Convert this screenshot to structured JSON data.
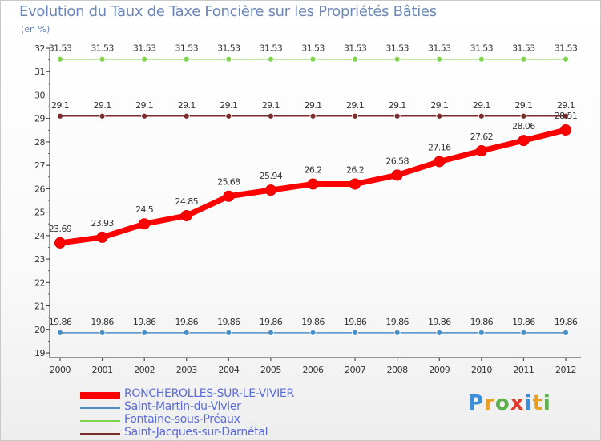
{
  "chart_data": {
    "type": "line",
    "title": "Evolution du Taux de Taxe Foncière sur les Propriétés Bâties",
    "ylabel": "(en %)",
    "xlabel": "",
    "x": [
      "2000",
      "2001",
      "2002",
      "2003",
      "2004",
      "2005",
      "2006",
      "2007",
      "2008",
      "2009",
      "2010",
      "2011",
      "2012"
    ],
    "yticks": [
      "19",
      "20",
      "21",
      "22",
      "23",
      "24",
      "25",
      "26",
      "27",
      "28",
      "29",
      "30",
      "31",
      "32"
    ],
    "ylim": [
      19,
      32
    ],
    "grid": false,
    "legend_position": "bottom-left",
    "series": [
      {
        "name": "RONCHEROLLES-SUR-LE-VIVIER",
        "color": "#ff0000",
        "values": [
          23.69,
          23.93,
          24.5,
          24.85,
          25.68,
          25.94,
          26.2,
          26.2,
          26.58,
          27.16,
          27.62,
          28.06,
          28.51
        ],
        "labels": [
          "23.69",
          "23.93",
          "24.5",
          "24.85",
          "25.68",
          "25.94",
          "26.2",
          "26.2",
          "26.58",
          "27.16",
          "27.62",
          "28.06",
          "28.51"
        ]
      },
      {
        "name": "Saint-Martin-du-Vivier",
        "color": "#4a8ec6",
        "values": [
          19.86,
          19.86,
          19.86,
          19.86,
          19.86,
          19.86,
          19.86,
          19.86,
          19.86,
          19.86,
          19.86,
          19.86,
          19.86
        ],
        "labels": [
          "19.86",
          "19.86",
          "19.86",
          "19.86",
          "19.86",
          "19.86",
          "19.86",
          "19.86",
          "19.86",
          "19.86",
          "19.86",
          "19.86",
          "19.86"
        ]
      },
      {
        "name": "Fontaine-sous-Préaux",
        "color": "#7fd44c",
        "values": [
          31.53,
          31.53,
          31.53,
          31.53,
          31.53,
          31.53,
          31.53,
          31.53,
          31.53,
          31.53,
          31.53,
          31.53,
          31.53
        ],
        "labels": [
          "31.53",
          "31.53",
          "31.53",
          "31.53",
          "31.53",
          "31.53",
          "31.53",
          "31.53",
          "31.53",
          "31.53",
          "31.53",
          "31.53",
          "31.53"
        ]
      },
      {
        "name": "Saint-Jacques-sur-Darnétal",
        "color": "#7a2b2b",
        "values": [
          29.1,
          29.1,
          29.1,
          29.1,
          29.1,
          29.1,
          29.1,
          29.1,
          29.1,
          29.1,
          29.1,
          29.1,
          29.1
        ],
        "labels": [
          "29.1",
          "29.1",
          "29.1",
          "29.1",
          "29.1",
          "29.1",
          "29.1",
          "29.1",
          "29.1",
          "29.1",
          "29.1",
          "29.1",
          "29.1"
        ]
      }
    ]
  },
  "logo": {
    "letters": [
      "P",
      "r",
      "o",
      "x",
      "i",
      "t",
      "i"
    ],
    "colors": [
      "#3b8fd9",
      "#e8a020",
      "#5bb04a",
      "#e03a2e",
      "#3b8fd9",
      "#e8a020",
      "#5bb04a"
    ]
  }
}
